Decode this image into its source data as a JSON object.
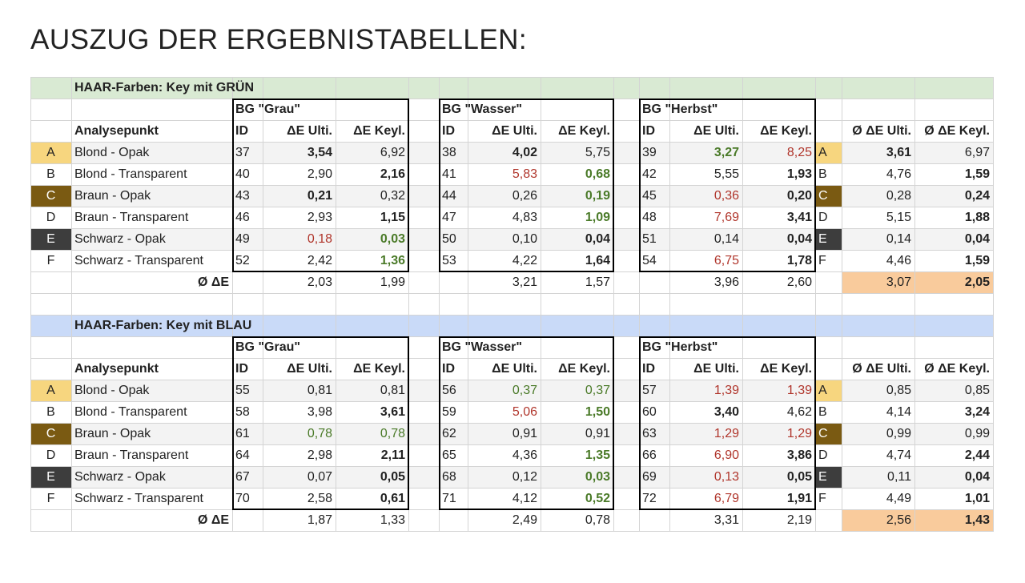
{
  "title": "AUSZUG DER ERGEBNISTABELLEN:",
  "colors": {
    "red": "#b0352b",
    "green": "#4a7a28",
    "text": "#222222",
    "grid": "#d4d4d4",
    "row_shade": "#f3f3f3",
    "summary_highlight": "#f9cb9c"
  },
  "letters": [
    {
      "label": "A",
      "fill": "#f7d67f",
      "text": "#222222"
    },
    {
      "label": "B",
      "fill": "transparent",
      "text": "#222222"
    },
    {
      "label": "C",
      "fill": "#7a5a12",
      "text": "#ffffff"
    },
    {
      "label": "D",
      "fill": "transparent",
      "text": "#222222"
    },
    {
      "label": "E",
      "fill": "#3d3d3d",
      "text": "#ffffff"
    },
    {
      "label": "F",
      "fill": "transparent",
      "text": "#222222"
    }
  ],
  "tables": [
    {
      "title": "HAAR-Farben: Key mit GRÜN",
      "band_color": "#d9ead3",
      "groups": [
        "BG \"Grau\"",
        "BG \"Wasser\"",
        "BG \"Herbst\""
      ],
      "headers": {
        "name": "Analysepunkt",
        "id": "ID",
        "ulti": "ΔE Ulti.",
        "keyl": "ΔE Keyl.",
        "avg_ulti": "Ø ΔE Ulti.",
        "avg_keyl": "Ø ΔE Keyl."
      },
      "rows": [
        {
          "label": "Blond - Opak",
          "cells": [
            "37",
            "3,54",
            "6,92",
            "38",
            "4,02",
            "5,75",
            "39",
            "3,27",
            "8,25",
            "3,61",
            "6,97"
          ],
          "formats": [
            "plain",
            "bold",
            "plain",
            "plain",
            "bold",
            "plain",
            "plain",
            "green bold",
            "red",
            "bold",
            "plain"
          ]
        },
        {
          "label": "Blond - Transparent",
          "cells": [
            "40",
            "2,90",
            "2,16",
            "41",
            "5,83",
            "0,68",
            "42",
            "5,55",
            "1,93",
            "4,76",
            "1,59"
          ],
          "formats": [
            "plain",
            "plain",
            "bold",
            "plain",
            "red",
            "green bold",
            "plain",
            "plain",
            "bold",
            "plain",
            "bold"
          ]
        },
        {
          "label": "Braun - Opak",
          "cells": [
            "43",
            "0,21",
            "0,32",
            "44",
            "0,26",
            "0,19",
            "45",
            "0,36",
            "0,20",
            "0,28",
            "0,24"
          ],
          "formats": [
            "plain",
            "bold",
            "plain",
            "plain",
            "plain",
            "green bold",
            "plain",
            "red",
            "bold",
            "plain",
            "bold"
          ]
        },
        {
          "label": "Braun - Transparent",
          "cells": [
            "46",
            "2,93",
            "1,15",
            "47",
            "4,83",
            "1,09",
            "48",
            "7,69",
            "3,41",
            "5,15",
            "1,88"
          ],
          "formats": [
            "plain",
            "plain",
            "bold",
            "plain",
            "plain",
            "green bold",
            "plain",
            "red",
            "bold",
            "plain",
            "bold"
          ]
        },
        {
          "label": "Schwarz - Opak",
          "cells": [
            "49",
            "0,18",
            "0,03",
            "50",
            "0,10",
            "0,04",
            "51",
            "0,14",
            "0,04",
            "0,14",
            "0,04"
          ],
          "formats": [
            "plain",
            "red",
            "green bold",
            "plain",
            "plain",
            "bold",
            "plain",
            "plain",
            "bold",
            "plain",
            "bold"
          ]
        },
        {
          "label": "Schwarz - Transparent",
          "cells": [
            "52",
            "2,42",
            "1,36",
            "53",
            "4,22",
            "1,64",
            "54",
            "6,75",
            "1,78",
            "4,46",
            "1,59"
          ],
          "formats": [
            "plain",
            "plain",
            "green bold",
            "plain",
            "plain",
            "bold",
            "plain",
            "red",
            "bold",
            "plain",
            "bold"
          ]
        }
      ],
      "summary": {
        "label": "Ø ΔE",
        "cells": [
          "2,03",
          "1,99",
          "3,21",
          "1,57",
          "3,96",
          "2,60",
          "3,07",
          "2,05"
        ],
        "formats": [
          "plain",
          "plain",
          "plain",
          "plain",
          "plain",
          "plain",
          "plain",
          "bold"
        ]
      }
    },
    {
      "title": "HAAR-Farben: Key mit BLAU",
      "band_color": "#c9daf8",
      "groups": [
        "BG \"Grau\"",
        "BG \"Wasser\"",
        "BG \"Herbst\""
      ],
      "headers": {
        "name": "Analysepunkt",
        "id": "ID",
        "ulti": "ΔE Ulti.",
        "keyl": "ΔE Keyl.",
        "avg_ulti": "Ø ΔE Ulti.",
        "avg_keyl": "Ø ΔE Keyl."
      },
      "rows": [
        {
          "label": "Blond - Opak",
          "cells": [
            "55",
            "0,81",
            "0,81",
            "56",
            "0,37",
            "0,37",
            "57",
            "1,39",
            "1,39",
            "0,85",
            "0,85"
          ],
          "formats": [
            "plain",
            "plain",
            "plain",
            "plain",
            "green",
            "green",
            "plain",
            "red",
            "red",
            "plain",
            "plain"
          ]
        },
        {
          "label": "Blond - Transparent",
          "cells": [
            "58",
            "3,98",
            "3,61",
            "59",
            "5,06",
            "1,50",
            "60",
            "3,40",
            "4,62",
            "4,14",
            "3,24"
          ],
          "formats": [
            "plain",
            "plain",
            "bold",
            "plain",
            "red",
            "green bold",
            "plain",
            "bold",
            "plain",
            "plain",
            "bold"
          ]
        },
        {
          "label": "Braun - Opak",
          "cells": [
            "61",
            "0,78",
            "0,78",
            "62",
            "0,91",
            "0,91",
            "63",
            "1,29",
            "1,29",
            "0,99",
            "0,99"
          ],
          "formats": [
            "plain",
            "green",
            "green",
            "plain",
            "plain",
            "plain",
            "plain",
            "red",
            "red",
            "plain",
            "plain"
          ]
        },
        {
          "label": "Braun - Transparent",
          "cells": [
            "64",
            "2,98",
            "2,11",
            "65",
            "4,36",
            "1,35",
            "66",
            "6,90",
            "3,86",
            "4,74",
            "2,44"
          ],
          "formats": [
            "plain",
            "plain",
            "bold",
            "plain",
            "plain",
            "green bold",
            "plain",
            "red",
            "bold",
            "plain",
            "bold"
          ]
        },
        {
          "label": "Schwarz - Opak",
          "cells": [
            "67",
            "0,07",
            "0,05",
            "68",
            "0,12",
            "0,03",
            "69",
            "0,13",
            "0,05",
            "0,11",
            "0,04"
          ],
          "formats": [
            "plain",
            "plain",
            "bold",
            "plain",
            "plain",
            "green bold",
            "plain",
            "red",
            "bold",
            "plain",
            "bold"
          ]
        },
        {
          "label": "Schwarz - Transparent",
          "cells": [
            "70",
            "2,58",
            "0,61",
            "71",
            "4,12",
            "0,52",
            "72",
            "6,79",
            "1,91",
            "4,49",
            "1,01"
          ],
          "formats": [
            "plain",
            "plain",
            "bold",
            "plain",
            "plain",
            "green bold",
            "plain",
            "red",
            "bold",
            "plain",
            "bold"
          ]
        }
      ],
      "summary": {
        "label": "Ø ΔE",
        "cells": [
          "1,87",
          "1,33",
          "2,49",
          "0,78",
          "3,31",
          "2,19",
          "2,56",
          "1,43"
        ],
        "formats": [
          "plain",
          "plain",
          "plain",
          "plain",
          "plain",
          "plain",
          "plain",
          "bold"
        ]
      }
    }
  ]
}
